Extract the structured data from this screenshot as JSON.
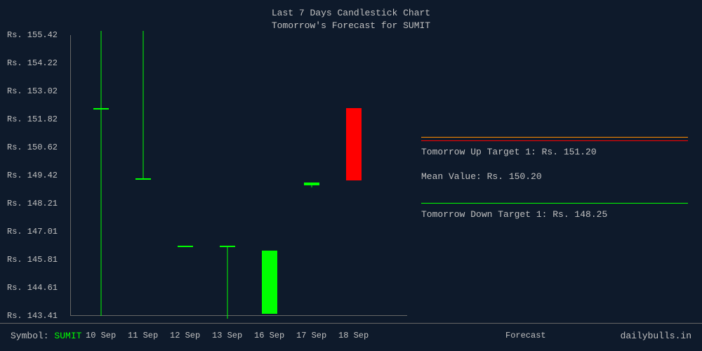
{
  "title": {
    "line1": "Last 7 Days Candlestick Chart",
    "line2": "Tomorrow's Forecast for SUMIT",
    "fontsize": 13,
    "color": "#c0c0c0"
  },
  "chart": {
    "type": "candlestick",
    "background_color": "#0e1a2b",
    "axis_color": "#666666",
    "text_color": "#c0c0c0",
    "bull_color": "#00ff00",
    "bear_color": "#ff0000",
    "y_prefix": "Rs. ",
    "ymin": 143.41,
    "ymax": 155.42,
    "y_ticks": [
      155.42,
      154.22,
      153.02,
      151.82,
      150.62,
      149.42,
      148.21,
      147.01,
      145.81,
      144.61,
      143.41
    ],
    "candle_body_width": 22,
    "candles": [
      {
        "date": "10 Sep",
        "open": 152.3,
        "high": 155.6,
        "low": 143.41,
        "close": 152.3,
        "color": "#00ff00"
      },
      {
        "date": "11 Sep",
        "open": 149.3,
        "high": 155.6,
        "low": 149.3,
        "close": 149.3,
        "color": "#00ff00"
      },
      {
        "date": "12 Sep",
        "open": 146.4,
        "high": 146.4,
        "low": 146.4,
        "close": 146.4,
        "color": "#00ff00"
      },
      {
        "date": "13 Sep",
        "open": 146.4,
        "high": 146.4,
        "low": 143.3,
        "close": 146.4,
        "color": "#00ff00"
      },
      {
        "date": "16 Sep",
        "open": 143.5,
        "high": 146.2,
        "low": 143.5,
        "close": 146.2,
        "color": "#00ff00"
      },
      {
        "date": "17 Sep",
        "open": 149.0,
        "high": 149.1,
        "low": 148.9,
        "close": 149.1,
        "color": "#00ff00"
      },
      {
        "date": "18 Sep",
        "open": 152.3,
        "high": 152.3,
        "low": 149.2,
        "close": 149.2,
        "color": "#ff0000"
      }
    ],
    "x_extra": [
      {
        "label": "Forecast",
        "x": 720
      }
    ]
  },
  "info_panel": {
    "items": [
      {
        "border_color": "#ff8c00",
        "text": ""
      },
      {
        "border_color": "#ff0000",
        "text": "Tomorrow Up Target 1: Rs. 151.20"
      },
      {
        "border_color": "none",
        "text": "Mean Value: Rs. 150.20"
      },
      {
        "border_color": "#00ff00",
        "text": "Tomorrow Down Target 1: Rs. 148.25"
      }
    ],
    "fontsize": 13
  },
  "footer": {
    "symbol_label": "Symbol: ",
    "symbol_value": "SUMIT",
    "symbol_color": "#00ff00",
    "brand": "dailybulls.in"
  }
}
